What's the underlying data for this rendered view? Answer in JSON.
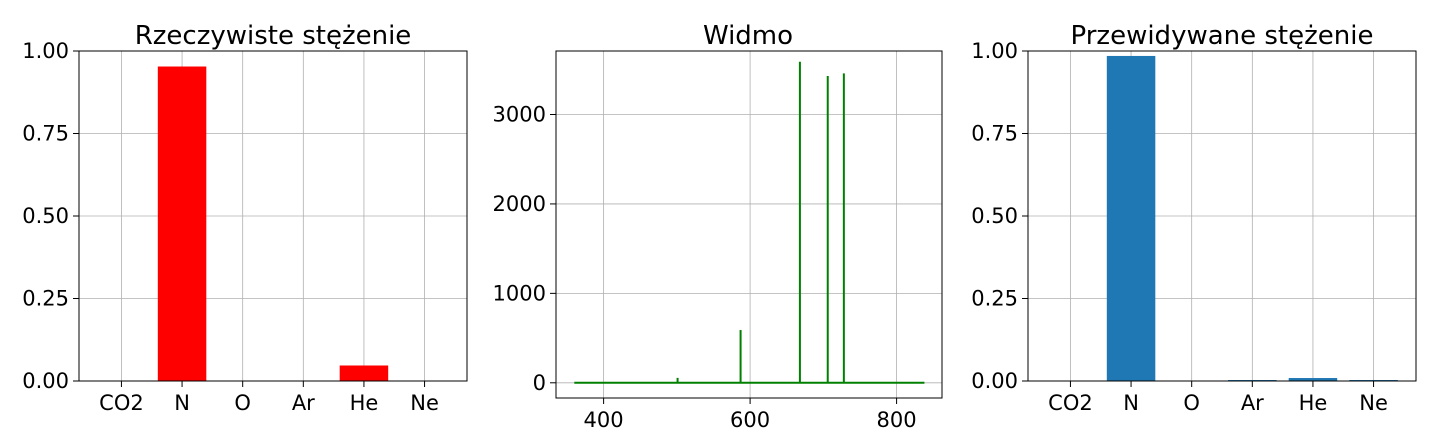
{
  "chart_data": [
    {
      "type": "bar",
      "title": "Rzeczywiste stężenie",
      "categories": [
        "CO2",
        "N",
        "O",
        "Ar",
        "He",
        "Ne"
      ],
      "values": [
        0.0,
        0.953,
        0.0,
        0.0,
        0.047,
        0.0
      ],
      "ylim": [
        0,
        1.0
      ],
      "yticks": [
        "0.00",
        "0.25",
        "0.50",
        "0.75",
        "1.00"
      ],
      "color": "#ff0000",
      "grid": true
    },
    {
      "type": "line",
      "title": "Widmo",
      "xlim": [
        335,
        862
      ],
      "ylim": [
        -170,
        3710
      ],
      "xticks": [
        "400",
        "600",
        "800"
      ],
      "yticks": [
        "0",
        "1000",
        "2000",
        "3000"
      ],
      "baseline": {
        "x_start": 360,
        "x_end": 838,
        "y": 0
      },
      "peaks": [
        {
          "x": 501,
          "y": 55
        },
        {
          "x": 587,
          "y": 590
        },
        {
          "x": 668,
          "y": 3590
        },
        {
          "x": 706,
          "y": 3430
        },
        {
          "x": 728,
          "y": 3460
        }
      ],
      "color": "#008000",
      "grid": true
    },
    {
      "type": "bar",
      "title": "Przewidywane stężenie",
      "categories": [
        "CO2",
        "N",
        "O",
        "Ar",
        "He",
        "Ne"
      ],
      "values": [
        0.0,
        0.985,
        0.0,
        0.003,
        0.009,
        0.003
      ],
      "ylim": [
        0,
        1.0
      ],
      "yticks": [
        "0.00",
        "0.25",
        "0.50",
        "0.75",
        "1.00"
      ],
      "color": "#1f77b4",
      "grid": true
    }
  ]
}
